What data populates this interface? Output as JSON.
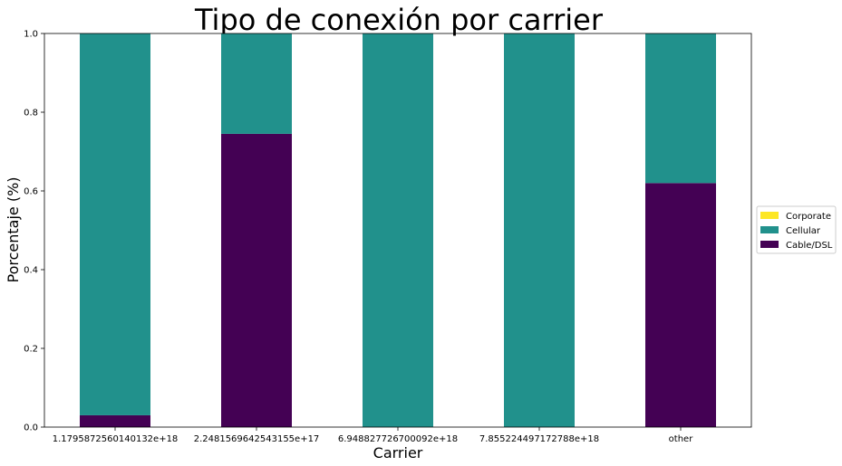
{
  "chart_data": {
    "type": "bar",
    "stacked": true,
    "title": "Tipo de conexión por carrier",
    "xlabel": "Carrier",
    "ylabel": "Porcentaje (%)",
    "categories": [
      "1.1795872560140132e+18",
      "2.2481569642543155e+17",
      "6.948827726700092e+18",
      "7.855224497172788e+18",
      "other"
    ],
    "ylim": [
      0,
      1
    ],
    "yticks": [
      "0.0",
      "0.2",
      "0.4",
      "0.6",
      "0.8",
      "1.0"
    ],
    "series": [
      {
        "name": "Cable/DSL",
        "color": "#440154",
        "values": [
          0.03,
          0.745,
          0.0,
          0.0,
          0.62
        ]
      },
      {
        "name": "Cellular",
        "color": "#21918c",
        "values": [
          0.97,
          0.255,
          1.0,
          1.0,
          0.38
        ]
      },
      {
        "name": "Corporate",
        "color": "#fde725",
        "values": [
          0.0,
          0.0,
          0.0,
          0.0,
          0.0
        ]
      }
    ],
    "legend": {
      "placement": "right",
      "order": [
        "Corporate",
        "Cellular",
        "Cable/DSL"
      ]
    },
    "grid": false
  }
}
